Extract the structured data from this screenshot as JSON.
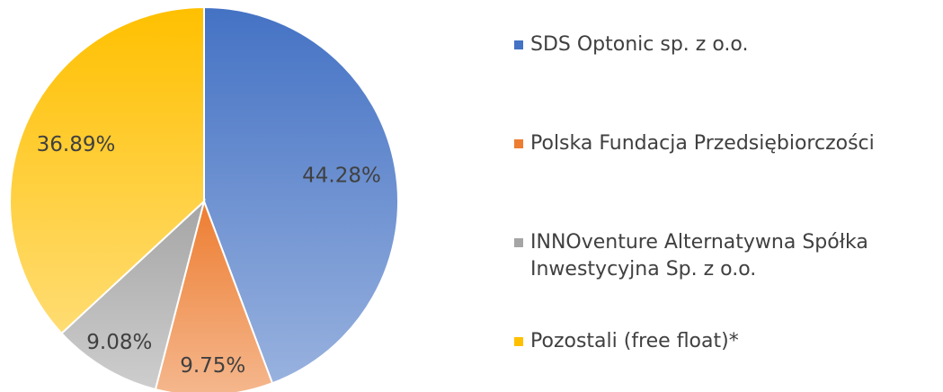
{
  "chart_data": {
    "type": "pie",
    "categories": [
      "SDS Optonic sp. z o.o.",
      "Polska Fundacja Przedsiębiorczości",
      "INNOventure Alternatywna Spółka Inwestycyjna Sp. z o.o.",
      "Pozostali (free float)*"
    ],
    "values": [
      44.28,
      9.75,
      9.08,
      36.89
    ],
    "value_labels": [
      "44.28%",
      "9.75%",
      "9.08%",
      "36.89%"
    ],
    "colors": [
      "#4472c4",
      "#ed7d31",
      "#a5a5a5",
      "#ffc000"
    ],
    "legend": "right"
  }
}
